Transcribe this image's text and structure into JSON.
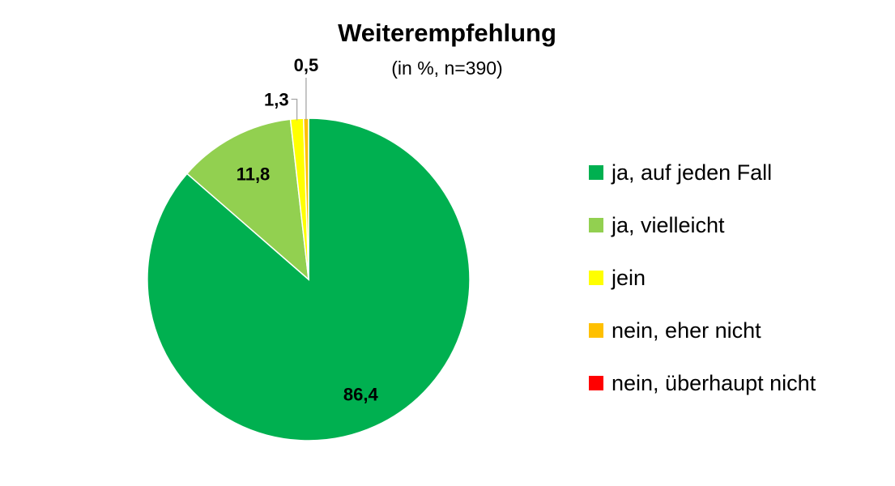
{
  "chart_data": {
    "type": "pie",
    "title": "Weiterempfehlung",
    "subtitle": "(in %, n=390)",
    "legend_position": "right",
    "start_angle_deg": 0,
    "direction": "clockwise",
    "slices": [
      {
        "label": "ja, auf jeden Fall",
        "value": 86.4,
        "value_label": "86,4",
        "color": "#00B050"
      },
      {
        "label": "ja, vielleicht",
        "value": 11.8,
        "value_label": "11,8",
        "color": "#92D050"
      },
      {
        "label": "jein",
        "value": 1.3,
        "value_label": "1,3",
        "color": "#FFFF00"
      },
      {
        "label": "nein, eher nicht",
        "value": 0.5,
        "value_label": "0,5",
        "color": "#FFC000"
      },
      {
        "label": "nein, überhaupt nicht",
        "value": 0.0,
        "value_label": "",
        "color": "#FF0000"
      }
    ]
  }
}
